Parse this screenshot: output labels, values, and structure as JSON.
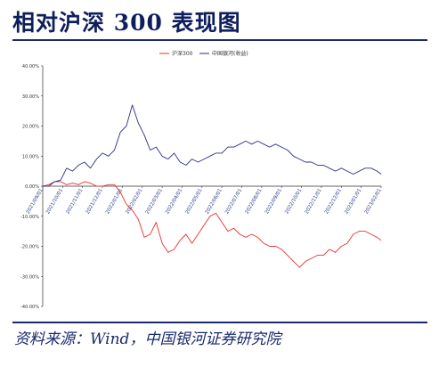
{
  "title": "相对沪深 300 表现图",
  "source": "资料来源：Wind，中国银河证券研究院",
  "colors": {
    "title": "#0f1f5c",
    "rule": "#1a2a6c",
    "hs300": "#e8302a",
    "zgyf": "#2b2f86"
  },
  "chart_data": {
    "type": "line",
    "title": "",
    "xlabel": "",
    "ylabel": "",
    "ylim": [
      -40,
      40
    ],
    "yticks": [
      "40.00%",
      "30.00%",
      "20.00%",
      "10.00%",
      "0.00%",
      "-10.00%",
      "-20.00%",
      "-30.00%",
      "-40.00%"
    ],
    "x_tick_labels": [
      "2021/09/01",
      "2021/10/01",
      "2021/11/01",
      "2021/12/01",
      "2022/01/01",
      "2022/02/01",
      "2022/03/01",
      "2022/04/01",
      "2022/05/01",
      "2022/06/01",
      "2022/07/01",
      "2022/08/01",
      "2022/09/01",
      "2022/10/01",
      "2022/11/01",
      "2022/12/01",
      "2023/01/01",
      "2023/02/01"
    ],
    "grid": false,
    "legend_position": "top-center",
    "series": [
      {
        "name": "沪深300",
        "color": "#e8302a",
        "x": [
          0,
          0.3,
          0.6,
          0.9,
          1.2,
          1.5,
          1.8,
          2.1,
          2.4,
          2.7,
          3.0,
          3.3,
          3.6,
          3.9,
          4.2,
          4.5,
          4.8,
          5.1,
          5.4,
          5.7,
          6.0,
          6.3,
          6.6,
          6.9,
          7.2,
          7.5,
          7.8,
          8.1,
          8.4,
          8.7,
          9.0,
          9.3,
          9.6,
          9.9,
          10.2,
          10.5,
          10.8,
          11.1,
          11.4,
          11.7,
          12.0,
          12.3,
          12.6,
          12.9,
          13.2,
          13.5,
          13.8,
          14.1,
          14.4,
          14.7,
          15.0,
          15.3,
          15.6,
          15.9,
          16.2,
          16.5,
          16.8,
          17.0
        ],
        "values": [
          0,
          0.5,
          1.5,
          1.5,
          0.5,
          1,
          0.5,
          1.5,
          1,
          0,
          0,
          0.5,
          0.5,
          -2,
          -6,
          -8,
          -11,
          -17,
          -16,
          -12,
          -19,
          -22,
          -21,
          -18,
          -16,
          -19,
          -16,
          -13,
          -10,
          -9,
          -12,
          -15,
          -14,
          -16,
          -17,
          -16,
          -17,
          -19,
          -20,
          -20,
          -21,
          -23,
          -25,
          -27,
          -25,
          -24,
          -23,
          -23,
          -21,
          -22,
          -20,
          -19,
          -16,
          -15,
          -15,
          -16,
          -17,
          -18
        ]
      },
      {
        "name": "中国银河(收益)",
        "color": "#2b2f86",
        "x": [
          0,
          0.3,
          0.6,
          0.9,
          1.2,
          1.5,
          1.8,
          2.1,
          2.4,
          2.7,
          3.0,
          3.3,
          3.6,
          3.9,
          4.2,
          4.5,
          4.8,
          5.1,
          5.4,
          5.7,
          6.0,
          6.3,
          6.6,
          6.9,
          7.2,
          7.5,
          7.8,
          8.1,
          8.4,
          8.7,
          9.0,
          9.3,
          9.6,
          9.9,
          10.2,
          10.5,
          10.8,
          11.1,
          11.4,
          11.7,
          12.0,
          12.3,
          12.6,
          12.9,
          13.2,
          13.5,
          13.8,
          14.1,
          14.4,
          14.7,
          15.0,
          15.3,
          15.6,
          15.9,
          16.2,
          16.5,
          16.8,
          17.0
        ],
        "values": [
          0,
          0,
          1.5,
          2,
          6,
          5,
          7,
          8,
          6,
          9,
          11,
          10,
          12,
          18,
          20,
          27,
          21,
          17,
          12,
          13,
          10,
          9,
          11,
          8,
          7,
          9,
          8,
          9,
          10,
          11,
          11,
          13,
          13,
          14,
          15,
          14,
          15,
          14,
          13,
          14,
          13,
          12,
          10,
          9,
          8,
          8,
          7,
          7,
          6,
          5,
          6,
          5,
          4,
          5,
          6,
          6,
          5,
          4
        ]
      }
    ]
  }
}
